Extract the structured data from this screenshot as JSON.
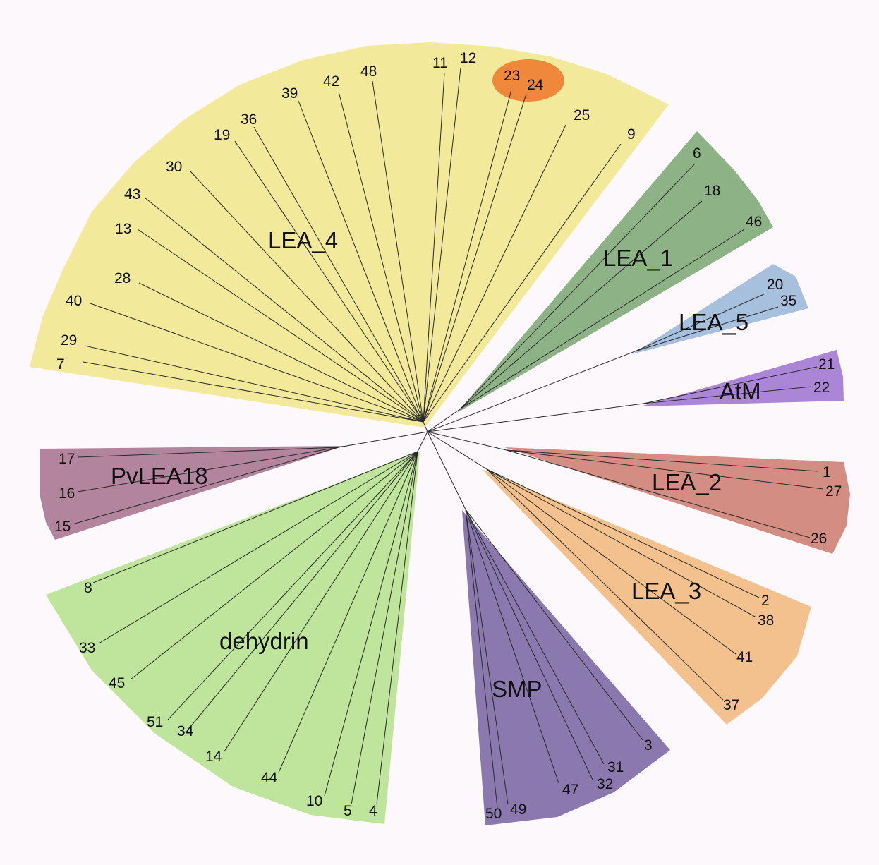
{
  "background_color": "#fdf8fb",
  "highlight": {
    "leaves": [
      "23",
      "24"
    ],
    "color": "#f0883c"
  },
  "groups": [
    {
      "label": "LEA_4",
      "color": "#f3e99a",
      "leaves": [
        "7",
        "29",
        "40",
        "28",
        "13",
        "43",
        "30",
        "19",
        "36",
        "39",
        "42",
        "48",
        "11",
        "12",
        "23",
        "24",
        "25",
        "9"
      ]
    },
    {
      "label": "LEA_1",
      "color": "#8db286",
      "leaves": [
        "6",
        "18",
        "46"
      ]
    },
    {
      "label": "LEA_5",
      "color": "#a7c0de",
      "leaves": [
        "20",
        "35"
      ]
    },
    {
      "label": "AtM",
      "color": "#ab85d6",
      "leaves": [
        "21",
        "22"
      ]
    },
    {
      "label": "LEA_2",
      "color": "#d38d82",
      "leaves": [
        "1",
        "27",
        "26"
      ]
    },
    {
      "label": "LEA_3",
      "color": "#f2c18d",
      "leaves": [
        "2",
        "38",
        "41",
        "37"
      ]
    },
    {
      "label": "SMP",
      "color": "#8a78ae",
      "leaves": [
        "3",
        "31",
        "32",
        "47",
        "49",
        "50"
      ]
    },
    {
      "label": "dehydrin",
      "color": "#bee59b",
      "leaves": [
        "4",
        "5",
        "10",
        "44",
        "14",
        "34",
        "51",
        "45",
        "33",
        "8"
      ]
    },
    {
      "label": "PvLEA18",
      "color": "#b2849e",
      "leaves": [
        "15",
        "16",
        "17"
      ]
    }
  ]
}
